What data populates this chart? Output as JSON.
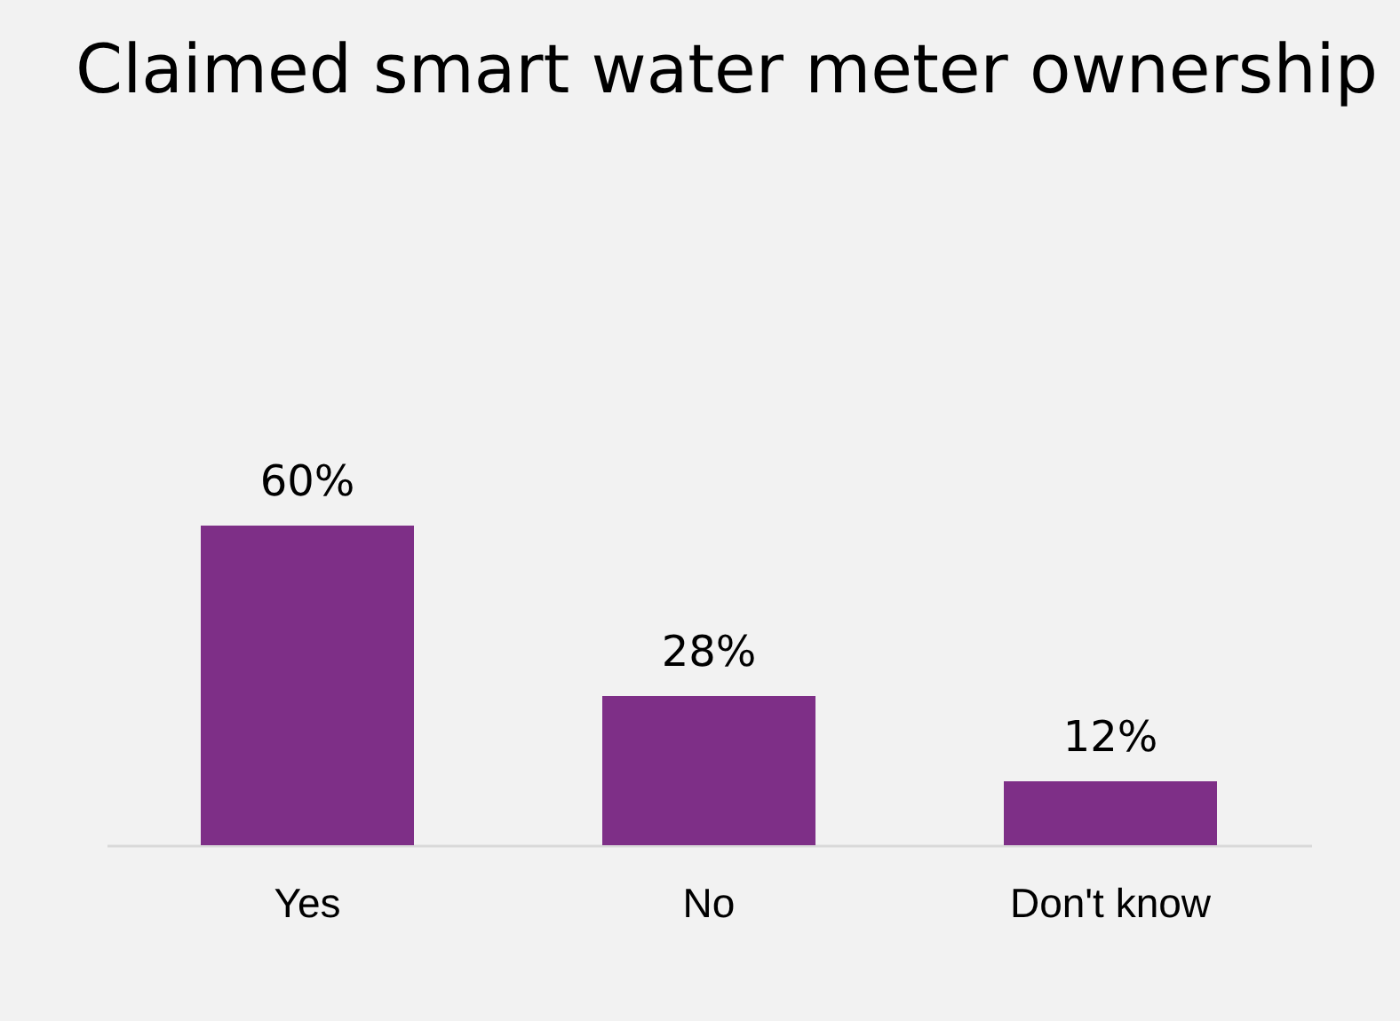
{
  "chart_data": {
    "type": "bar",
    "title": "Claimed smart water meter ownership",
    "categories": [
      "Yes",
      "No",
      "Don't know"
    ],
    "values": [
      60,
      28,
      12
    ],
    "color": "#7e2f87",
    "value_labels": [
      "60%",
      "28%",
      "12%"
    ]
  }
}
